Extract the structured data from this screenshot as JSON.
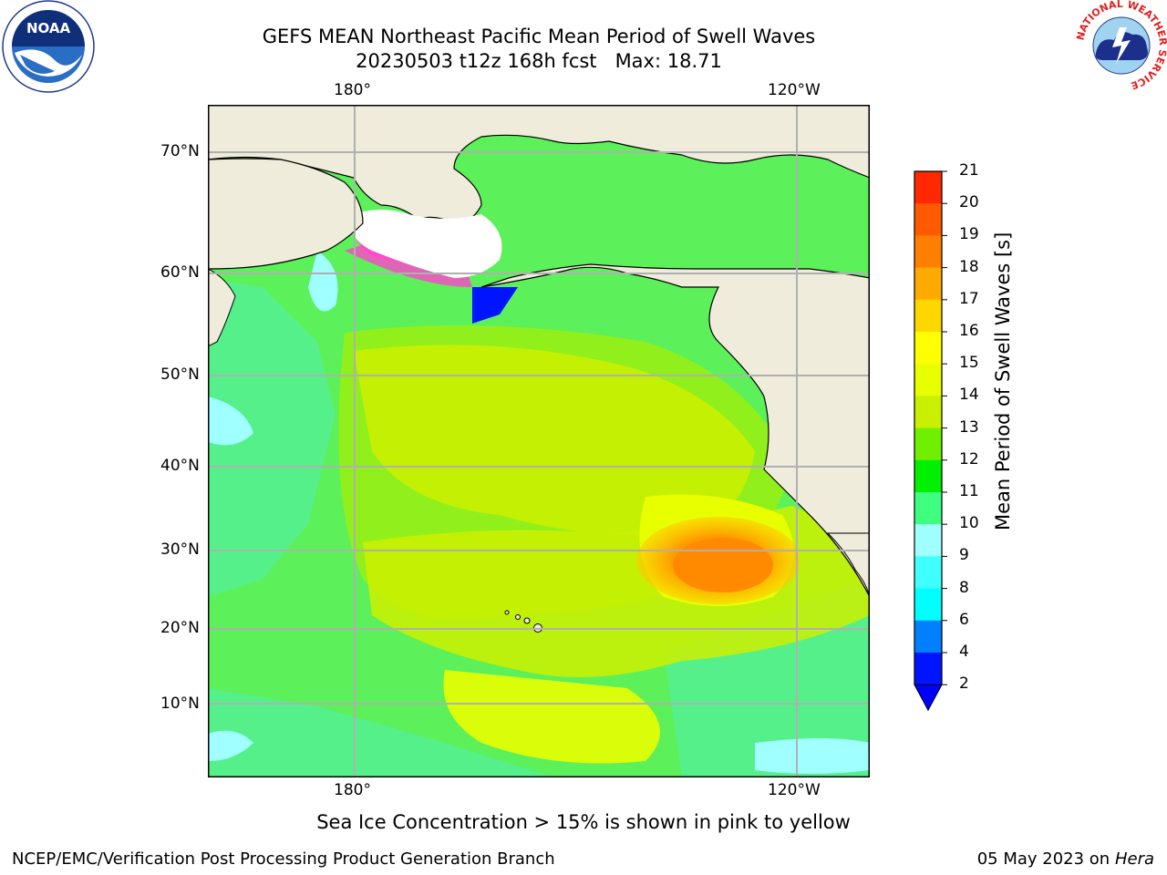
{
  "header": {
    "title_line1": "GEFS MEAN Northeast Pacific Mean Period of Swell Waves",
    "title_line2": "20230503 t12z 168h fcst   Max: 18.71"
  },
  "logos": {
    "noaa_text": "NOAA",
    "nws_ring_text": "NATIONAL WEATHER SERVICE"
  },
  "map": {
    "lon_labels": [
      "180°",
      "120°W"
    ],
    "lat_labels": [
      "70°N",
      "60°N",
      "50°N",
      "40°N",
      "30°N",
      "20°N",
      "10°N"
    ],
    "colors": {
      "land": "#efecdc",
      "coast": "#000000",
      "grid": "#b0b0b0"
    }
  },
  "colorbar": {
    "label": "Mean Period of Swell Waves [s]",
    "ticks": [
      "2",
      "4",
      "6",
      "8",
      "9",
      "10",
      "11",
      "12",
      "13",
      "14",
      "15",
      "16",
      "17",
      "18",
      "19",
      "20",
      "21"
    ],
    "colors": [
      "#0014ff",
      "#0080ff",
      "#00ffff",
      "#40ffff",
      "#a0ffff",
      "#40ff80",
      "#00f000",
      "#70f000",
      "#c8f000",
      "#e8ff00",
      "#ffff00",
      "#ffd700",
      "#ffaa00",
      "#ff8000",
      "#ff5a00",
      "#ff2800",
      "#ff0000"
    ],
    "extend_color": "#0000ff"
  },
  "footer": {
    "note": "Sea Ice Concentration > 15% is shown in pink to yellow",
    "credit": "NCEP/EMC/Verification Post Processing Product Generation Branch",
    "date": "05 May 2023 on",
    "machine": "Hera"
  }
}
